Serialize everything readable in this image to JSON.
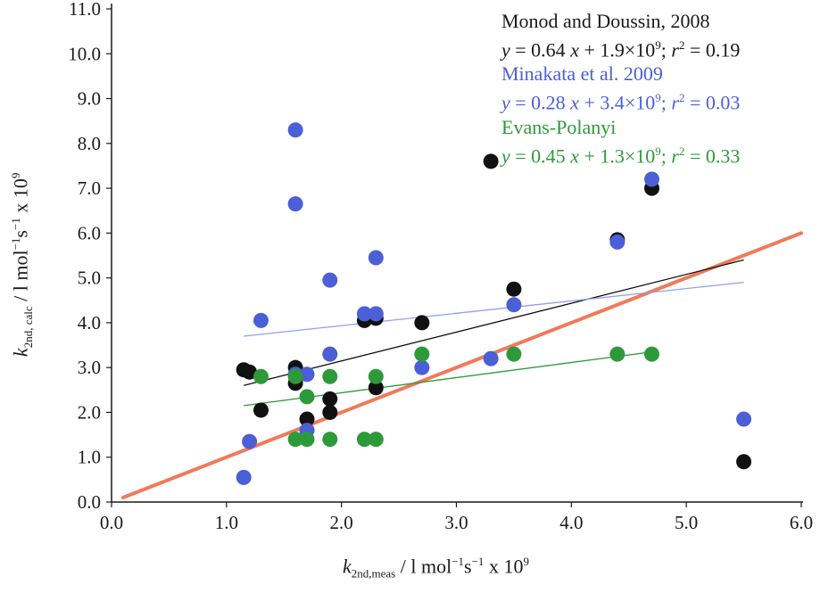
{
  "chart_data": {
    "type": "scatter",
    "xlim": [
      0,
      6
    ],
    "ylim": [
      0,
      11
    ],
    "x_ticks": [
      "0.0",
      "1.0",
      "2.0",
      "3.0",
      "4.0",
      "5.0",
      "6.0"
    ],
    "y_ticks": [
      "0.0",
      "1.0",
      "2.0",
      "3.0",
      "4.0",
      "5.0",
      "6.0",
      "7.0",
      "8.0",
      "9.0",
      "10.0",
      "11.0"
    ],
    "xlabel": {
      "main": "k",
      "sub": "2nd,meas",
      "rest": " / l mol",
      "sup1": "−1",
      "s": "s",
      "sup2": "−1",
      "tail": " x 10",
      "sup3": "9"
    },
    "ylabel": {
      "main": "k",
      "sub": "2nd, calc",
      "rest": " / l mol",
      "sup1": "−1",
      "s": "s",
      "sup2": "−1",
      "tail": " x 10",
      "sup3": "9"
    },
    "identity_line": {
      "color": "#f07a5a",
      "x": [
        0.1,
        6.0
      ],
      "y": [
        0.1,
        6.0
      ]
    },
    "series": [
      {
        "name": "Monod and Doussin, 2008",
        "color": "#111111",
        "points": [
          [
            1.15,
            2.95
          ],
          [
            1.2,
            2.9
          ],
          [
            1.3,
            2.05
          ],
          [
            1.6,
            3.0
          ],
          [
            1.6,
            2.65
          ],
          [
            1.7,
            1.85
          ],
          [
            1.9,
            2.3
          ],
          [
            1.9,
            2.0
          ],
          [
            2.2,
            4.05
          ],
          [
            2.3,
            4.1
          ],
          [
            2.3,
            2.55
          ],
          [
            2.7,
            4.0
          ],
          [
            3.3,
            7.6
          ],
          [
            3.5,
            4.75
          ],
          [
            4.4,
            5.85
          ],
          [
            4.7,
            7.0
          ],
          [
            5.5,
            0.9
          ]
        ],
        "fit": {
          "x": [
            1.15,
            5.5
          ],
          "y": [
            2.6,
            5.4
          ]
        }
      },
      {
        "name": "Minakata et al. 2009",
        "color": "#4b5fd6",
        "points": [
          [
            1.15,
            0.55
          ],
          [
            1.2,
            1.35
          ],
          [
            1.3,
            4.05
          ],
          [
            1.6,
            8.3
          ],
          [
            1.6,
            6.65
          ],
          [
            1.6,
            2.85
          ],
          [
            1.7,
            2.85
          ],
          [
            1.7,
            1.6
          ],
          [
            1.9,
            4.95
          ],
          [
            1.9,
            3.3
          ],
          [
            2.2,
            4.2
          ],
          [
            2.3,
            5.45
          ],
          [
            2.3,
            4.2
          ],
          [
            2.7,
            3.0
          ],
          [
            3.3,
            3.2
          ],
          [
            3.5,
            4.4
          ],
          [
            4.4,
            5.8
          ],
          [
            4.7,
            7.2
          ],
          [
            5.5,
            1.85
          ]
        ],
        "fit": {
          "x": [
            1.15,
            5.5
          ],
          "y": [
            3.7,
            4.9
          ]
        }
      },
      {
        "name": "Evans-Polanyi",
        "color": "#2d9a3a",
        "points": [
          [
            1.3,
            2.8
          ],
          [
            1.6,
            2.8
          ],
          [
            1.6,
            1.4
          ],
          [
            1.7,
            2.35
          ],
          [
            1.7,
            1.4
          ],
          [
            1.9,
            2.8
          ],
          [
            1.9,
            1.4
          ],
          [
            2.2,
            1.4
          ],
          [
            2.3,
            2.8
          ],
          [
            2.3,
            1.4
          ],
          [
            2.7,
            3.3
          ],
          [
            3.5,
            3.3
          ],
          [
            4.4,
            3.3
          ],
          [
            4.7,
            3.3
          ]
        ],
        "fit": {
          "x": [
            1.15,
            4.7
          ],
          "y": [
            2.15,
            3.35
          ]
        }
      }
    ],
    "legend": {
      "monod_title": "Monod and Doussin, 2008",
      "monod_eq": {
        "y": "y",
        "a": " = 0.64 ",
        "x": "x",
        "b": " + 1.9×10",
        "exp": "9",
        "c": "; ",
        "r": "r",
        "r2": "2",
        "d": " = 0.19"
      },
      "minakata_title": "Minakata et al. 2009",
      "minakata_eq": {
        "y": "y",
        "a": " = 0.28 ",
        "x": "x",
        "b": " + 3.4×10",
        "exp": "9",
        "c": "; ",
        "r": "r",
        "r2": "2",
        "d": " = 0.03"
      },
      "evans_title": "Evans-Polanyi",
      "evans_eq": {
        "y": "y",
        "a": " = 0.45 ",
        "x": "x",
        "b": " + 1.3×10",
        "exp": "9",
        "c": "; ",
        "r": "r",
        "r2": "2",
        "d": " = 0.33"
      }
    }
  }
}
